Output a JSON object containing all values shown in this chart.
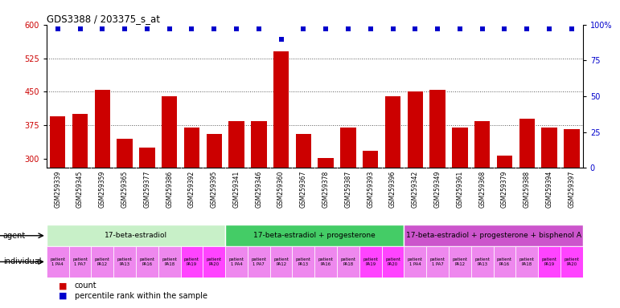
{
  "title": "GDS3388 / 203375_s_at",
  "gsm_labels": [
    "GSM259339",
    "GSM259345",
    "GSM259359",
    "GSM259365",
    "GSM259377",
    "GSM259386",
    "GSM259392",
    "GSM259395",
    "GSM259341",
    "GSM259346",
    "GSM259360",
    "GSM259367",
    "GSM259378",
    "GSM259387",
    "GSM259393",
    "GSM259396",
    "GSM259342",
    "GSM259349",
    "GSM259361",
    "GSM259368",
    "GSM259379",
    "GSM259388",
    "GSM259394",
    "GSM259397"
  ],
  "bar_values": [
    395,
    400,
    455,
    345,
    325,
    440,
    370,
    355,
    385,
    385,
    540,
    355,
    302,
    370,
    318,
    440,
    450,
    455,
    370,
    385,
    307,
    390,
    370,
    367
  ],
  "percentile_values": [
    97,
    97,
    97,
    97,
    97,
    97,
    97,
    97,
    97,
    97,
    90,
    97,
    97,
    97,
    97,
    97,
    97,
    97,
    97,
    97,
    97,
    97,
    97,
    97
  ],
  "bar_color": "#cc0000",
  "dot_color": "#0000cc",
  "ymin": 280,
  "ymax": 600,
  "yticks_left": [
    300,
    375,
    450,
    525,
    600
  ],
  "yticks_right": [
    0,
    25,
    50,
    75,
    100
  ],
  "agent_groups": [
    {
      "label": "17-beta-estradiol",
      "start": 0,
      "end": 8,
      "color": "#c8f0c8"
    },
    {
      "label": "17-beta-estradiol + progesterone",
      "start": 8,
      "end": 16,
      "color": "#44cc66"
    },
    {
      "label": "17-beta-estradiol + progesterone + bisphenol A",
      "start": 16,
      "end": 24,
      "color": "#cc55cc"
    }
  ],
  "individual_color_normal": "#ee88ee",
  "individual_color_highlight": "#ff44ff",
  "individual_highlights": [
    6,
    7,
    14,
    15
  ],
  "xaxis_bg": "#d0d0d0",
  "bg_color": "#ffffff",
  "dotted_line_color": "#555555",
  "indiv_labels_short": [
    "patient\n1 PA4",
    "patient\n1 PA7",
    "patient\nPA12",
    "patient\nPA13",
    "patient\nPA16",
    "patient\nPA18",
    "patient\nPA19",
    "patient\nPA20"
  ]
}
